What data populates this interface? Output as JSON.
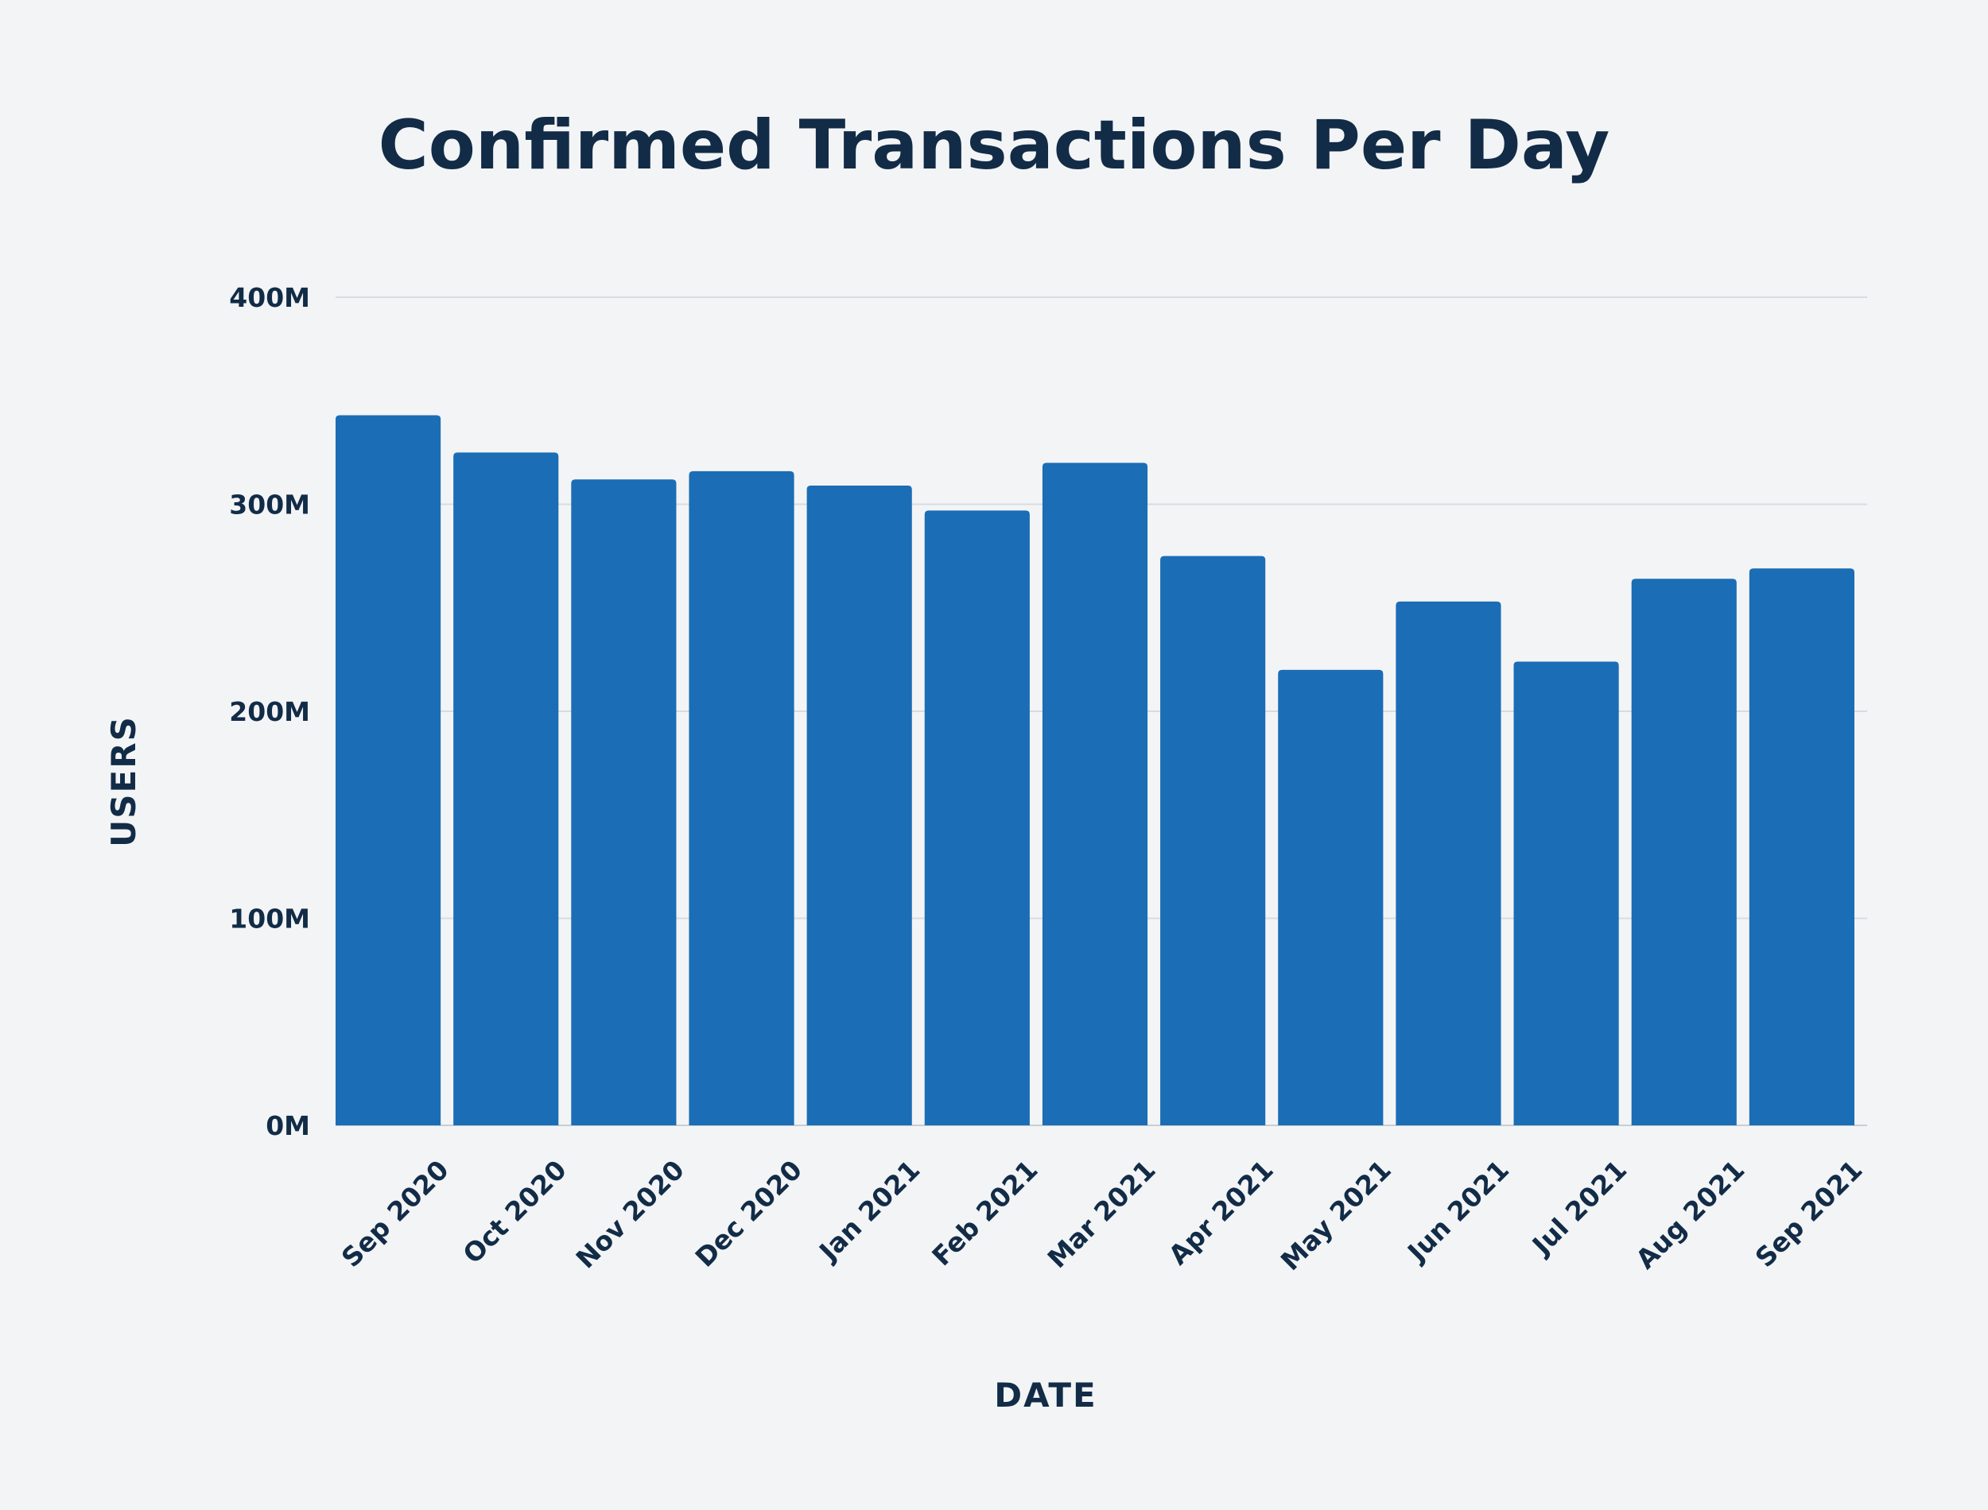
{
  "chart_data": {
    "type": "bar",
    "title": "Confirmed Transactions Per Day",
    "xlabel": "DATE",
    "ylabel": "USERS",
    "categories": [
      "Sep 2020",
      "Oct 2020",
      "Nov 2020",
      "Dec 2020",
      "Jan 2021",
      "Feb 2021",
      "Mar 2021",
      "Apr 2021",
      "May 2021",
      "Jun 2021",
      "Jul 2021",
      "Aug 2021",
      "Sep 2021"
    ],
    "values": [
      343,
      325,
      312,
      316,
      309,
      297,
      320,
      275,
      220,
      253,
      224,
      264,
      269
    ],
    "unit_suffix": "M",
    "ylim": [
      0,
      400
    ],
    "yticks": [
      0,
      100,
      200,
      300,
      400
    ],
    "ytick_labels": [
      "0M",
      "100M",
      "200M",
      "300M",
      "400M"
    ],
    "grid": true,
    "bar_color": "#1b6db5",
    "text_color": "#122c47",
    "background": "#f3f4f6"
  }
}
